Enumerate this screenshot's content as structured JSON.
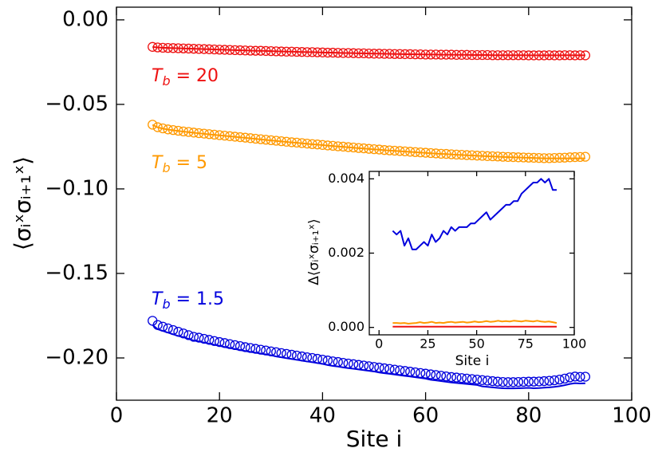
{
  "chart_data": [
    {
      "type": "line",
      "xlabel": "Site i",
      "ylabel": "⟨σᵢˣσᵢ₊₁ˣ⟩",
      "xlim": [
        0,
        100
      ],
      "ylim": [
        -0.225,
        0.0075
      ],
      "xticks": [
        0,
        20,
        40,
        60,
        80,
        100
      ],
      "yticks": [
        {
          "value": 0,
          "label": "0.00"
        },
        {
          "value": -0.05,
          "label": "−0.05"
        },
        {
          "value": -0.1,
          "label": "−0.10"
        },
        {
          "value": -0.15,
          "label": "−0.15"
        },
        {
          "value": -0.2,
          "label": "−0.20"
        }
      ],
      "x": [
        7,
        8,
        9,
        10,
        11,
        12,
        13,
        14,
        15,
        16,
        17,
        18,
        19,
        20,
        21,
        22,
        23,
        24,
        25,
        26,
        27,
        28,
        29,
        30,
        31,
        32,
        33,
        34,
        35,
        36,
        37,
        38,
        39,
        40,
        41,
        42,
        43,
        44,
        45,
        46,
        47,
        48,
        49,
        50,
        51,
        52,
        53,
        54,
        55,
        56,
        57,
        58,
        59,
        60,
        61,
        62,
        63,
        64,
        65,
        66,
        67,
        68,
        69,
        70,
        71,
        72,
        73,
        74,
        75,
        76,
        77,
        78,
        79,
        80,
        81,
        82,
        83,
        84,
        85,
        86,
        87,
        88,
        89,
        90,
        91
      ],
      "series": [
        {
          "style": "line",
          "color": "#ee1111",
          "values": [
            -0.016,
            -0.0163,
            -0.0165,
            -0.0166,
            -0.0167,
            -0.0168,
            -0.0169,
            -0.017,
            -0.0171,
            -0.0172,
            -0.0173,
            -0.0174,
            -0.0175,
            -0.0176,
            -0.0177,
            -0.0178,
            -0.0179,
            -0.018,
            -0.0181,
            -0.0182,
            -0.0183,
            -0.0183,
            -0.0184,
            -0.0185,
            -0.0186,
            -0.0187,
            -0.0188,
            -0.0188,
            -0.0189,
            -0.019,
            -0.0191,
            -0.0191,
            -0.0192,
            -0.0193,
            -0.0194,
            -0.0194,
            -0.0195,
            -0.0196,
            -0.0196,
            -0.0197,
            -0.0198,
            -0.0198,
            -0.0199,
            -0.02,
            -0.02,
            -0.0201,
            -0.0201,
            -0.0202,
            -0.0202,
            -0.0203,
            -0.0203,
            -0.0204,
            -0.0204,
            -0.0205,
            -0.0205,
            -0.0205,
            -0.0206,
            -0.0206,
            -0.0206,
            -0.0207,
            -0.0207,
            -0.0207,
            -0.0208,
            -0.0208,
            -0.0208,
            -0.0208,
            -0.0209,
            -0.0209,
            -0.0209,
            -0.0209,
            -0.0209,
            -0.0209,
            -0.0209,
            -0.021,
            -0.021,
            -0.021,
            -0.021,
            -0.0209,
            -0.021,
            -0.021,
            -0.0209,
            -0.0209,
            -0.021,
            -0.0209,
            -0.021
          ]
        },
        {
          "style": "markers",
          "color": "#ee1111",
          "values": [
            -0.016,
            -0.0163,
            -0.0165,
            -0.0166,
            -0.0167,
            -0.0168,
            -0.0169,
            -0.017,
            -0.0171,
            -0.0172,
            -0.0173,
            -0.0174,
            -0.0175,
            -0.0176,
            -0.0177,
            -0.0178,
            -0.0179,
            -0.018,
            -0.0181,
            -0.0182,
            -0.0183,
            -0.0183,
            -0.0184,
            -0.0185,
            -0.0186,
            -0.0187,
            -0.0188,
            -0.0188,
            -0.0189,
            -0.019,
            -0.0191,
            -0.0191,
            -0.0192,
            -0.0193,
            -0.0194,
            -0.0194,
            -0.0195,
            -0.0196,
            -0.0196,
            -0.0197,
            -0.0198,
            -0.0198,
            -0.0199,
            -0.02,
            -0.02,
            -0.0201,
            -0.0201,
            -0.0202,
            -0.0202,
            -0.0203,
            -0.0203,
            -0.0204,
            -0.0204,
            -0.0205,
            -0.0205,
            -0.0205,
            -0.0206,
            -0.0206,
            -0.0206,
            -0.0207,
            -0.0207,
            -0.0207,
            -0.0208,
            -0.0208,
            -0.0208,
            -0.0208,
            -0.0209,
            -0.0209,
            -0.0209,
            -0.0209,
            -0.0209,
            -0.0209,
            -0.0209,
            -0.021,
            -0.021,
            -0.021,
            -0.021,
            -0.0209,
            -0.021,
            -0.021,
            -0.0209,
            -0.0209,
            -0.021,
            -0.0209,
            -0.021
          ]
        },
        {
          "style": "line",
          "color": "#ff9900",
          "values": [
            -0.0621,
            -0.0636,
            -0.0643,
            -0.0649,
            -0.0653,
            -0.0657,
            -0.0661,
            -0.0664,
            -0.0668,
            -0.0671,
            -0.0674,
            -0.0677,
            -0.068,
            -0.0683,
            -0.0686,
            -0.0689,
            -0.0692,
            -0.0695,
            -0.0698,
            -0.0701,
            -0.0704,
            -0.0707,
            -0.071,
            -0.0713,
            -0.0716,
            -0.0719,
            -0.0722,
            -0.0725,
            -0.0727,
            -0.073,
            -0.0733,
            -0.0736,
            -0.0738,
            -0.0741,
            -0.0744,
            -0.0746,
            -0.0749,
            -0.0751,
            -0.0754,
            -0.0756,
            -0.0759,
            -0.0761,
            -0.0764,
            -0.0766,
            -0.0768,
            -0.0771,
            -0.0773,
            -0.0775,
            -0.0777,
            -0.0779,
            -0.0781,
            -0.0783,
            -0.0785,
            -0.0787,
            -0.0789,
            -0.0791,
            -0.0793,
            -0.0794,
            -0.0796,
            -0.0798,
            -0.0799,
            -0.0801,
            -0.0802,
            -0.0804,
            -0.0805,
            -0.0807,
            -0.0808,
            -0.0809,
            -0.0811,
            -0.0812,
            -0.0813,
            -0.0814,
            -0.0815,
            -0.0816,
            -0.0817,
            -0.0818,
            -0.0819,
            -0.0819,
            -0.0819,
            -0.0819,
            -0.0819,
            -0.0819,
            -0.0819,
            -0.0819,
            -0.0819
          ]
        },
        {
          "style": "markers",
          "color": "#ff9900",
          "values": [
            -0.062,
            -0.0635,
            -0.0642,
            -0.0648,
            -0.0652,
            -0.0656,
            -0.066,
            -0.0663,
            -0.0667,
            -0.067,
            -0.0673,
            -0.0676,
            -0.0679,
            -0.0682,
            -0.0685,
            -0.0688,
            -0.0691,
            -0.0694,
            -0.0697,
            -0.07,
            -0.0703,
            -0.0706,
            -0.0709,
            -0.0712,
            -0.0715,
            -0.0718,
            -0.0721,
            -0.0724,
            -0.0726,
            -0.0729,
            -0.0732,
            -0.0735,
            -0.0737,
            -0.074,
            -0.0743,
            -0.0745,
            -0.0748,
            -0.075,
            -0.0753,
            -0.0755,
            -0.0758,
            -0.076,
            -0.0763,
            -0.0765,
            -0.0767,
            -0.077,
            -0.0772,
            -0.0774,
            -0.0776,
            -0.0778,
            -0.078,
            -0.0782,
            -0.0784,
            -0.0786,
            -0.0788,
            -0.079,
            -0.0792,
            -0.0793,
            -0.0795,
            -0.0797,
            -0.0798,
            -0.08,
            -0.0801,
            -0.0803,
            -0.0804,
            -0.0806,
            -0.0807,
            -0.0808,
            -0.081,
            -0.0811,
            -0.0812,
            -0.0813,
            -0.0814,
            -0.0815,
            -0.0816,
            -0.0817,
            -0.0818,
            -0.0818,
            -0.0817,
            -0.0816,
            -0.0815,
            -0.0813,
            -0.0812,
            -0.0811,
            -0.081
          ]
        },
        {
          "style": "line",
          "color": "#0000dd",
          "values": [
            -0.1805,
            -0.183,
            -0.184,
            -0.185,
            -0.186,
            -0.187,
            -0.1877,
            -0.1887,
            -0.1897,
            -0.1902,
            -0.1909,
            -0.1915,
            -0.1922,
            -0.1928,
            -0.1935,
            -0.1941,
            -0.1947,
            -0.1953,
            -0.1959,
            -0.1964,
            -0.1969,
            -0.1974,
            -0.1979,
            -0.1984,
            -0.1991,
            -0.1996,
            -0.2001,
            -0.2006,
            -0.2011,
            -0.2016,
            -0.2021,
            -0.2025,
            -0.203,
            -0.2035,
            -0.2042,
            -0.2047,
            -0.2051,
            -0.2056,
            -0.206,
            -0.2064,
            -0.2068,
            -0.2072,
            -0.2076,
            -0.208,
            -0.2086,
            -0.209,
            -0.2094,
            -0.2098,
            -0.2102,
            -0.2106,
            -0.211,
            -0.2114,
            -0.2118,
            -0.2122,
            -0.2129,
            -0.2133,
            -0.2137,
            -0.2141,
            -0.2145,
            -0.2148,
            -0.2151,
            -0.2154,
            -0.2157,
            -0.216,
            -0.2168,
            -0.2171,
            -0.2174,
            -0.2177,
            -0.2179,
            -0.218,
            -0.218,
            -0.2179,
            -0.2178,
            -0.2177,
            -0.2179,
            -0.2178,
            -0.2176,
            -0.2174,
            -0.2171,
            -0.2167,
            -0.2161,
            -0.2154,
            -0.2149,
            -0.2151,
            -0.215
          ]
        },
        {
          "style": "markers",
          "color": "#0000dd",
          "values": [
            -0.178,
            -0.1805,
            -0.1815,
            -0.1825,
            -0.1835,
            -0.1845,
            -0.1855,
            -0.1865,
            -0.1875,
            -0.188,
            -0.1887,
            -0.1893,
            -0.19,
            -0.1906,
            -0.1912,
            -0.1918,
            -0.1924,
            -0.193,
            -0.1936,
            -0.1941,
            -0.1946,
            -0.1951,
            -0.1956,
            -0.1961,
            -0.1966,
            -0.1971,
            -0.1976,
            -0.1981,
            -0.1986,
            -0.1991,
            -0.1996,
            -0.2,
            -0.2005,
            -0.201,
            -0.2015,
            -0.202,
            -0.2024,
            -0.2029,
            -0.2033,
            -0.2037,
            -0.2041,
            -0.2045,
            -0.2049,
            -0.2053,
            -0.2057,
            -0.2061,
            -0.2065,
            -0.2069,
            -0.2073,
            -0.2077,
            -0.2081,
            -0.2085,
            -0.2089,
            -0.2093,
            -0.2097,
            -0.2101,
            -0.2105,
            -0.2109,
            -0.2113,
            -0.2116,
            -0.2119,
            -0.2122,
            -0.2125,
            -0.2128,
            -0.2131,
            -0.2134,
            -0.2137,
            -0.214,
            -0.2142,
            -0.2143,
            -0.2143,
            -0.2142,
            -0.2141,
            -0.214,
            -0.214,
            -0.2139,
            -0.2137,
            -0.2135,
            -0.2132,
            -0.2128,
            -0.2122,
            -0.2115,
            -0.211,
            -0.2112,
            -0.2111
          ]
        }
      ],
      "annotations": [
        {
          "text": "T",
          "sub": "b",
          "tail": " = 20",
          "color": "#ee1111"
        },
        {
          "text": "T",
          "sub": "b",
          "tail": " = 5",
          "color": "#ff9900"
        },
        {
          "text": "T",
          "sub": "b",
          "tail": " = 1.5",
          "color": "#0000dd"
        }
      ]
    },
    {
      "type": "line",
      "xlabel": "Site i",
      "ylabel": "Δ⟨σᵢˣσᵢ₊₁ˣ⟩",
      "xlim": [
        -5,
        100
      ],
      "ylim": [
        -0.0002,
        0.0042
      ],
      "xticks": [
        0,
        25,
        50,
        75,
        100
      ],
      "yticks": [
        {
          "value": 0,
          "label": "0.000"
        },
        {
          "value": 0.002,
          "label": "0.002"
        },
        {
          "value": 0.004,
          "label": "0.004"
        }
      ],
      "x": [
        7,
        9,
        11,
        13,
        15,
        17,
        19,
        21,
        23,
        25,
        27,
        29,
        31,
        33,
        35,
        37,
        39,
        41,
        43,
        45,
        47,
        49,
        51,
        53,
        55,
        57,
        59,
        61,
        63,
        65,
        67,
        69,
        71,
        73,
        75,
        77,
        79,
        81,
        83,
        85,
        87,
        89,
        91
      ],
      "series": [
        {
          "style": "line",
          "color": "#ee1111",
          "values": [
            2e-05,
            2e-05,
            2e-05,
            2e-05,
            2e-05,
            2e-05,
            2e-05,
            2e-05,
            2e-05,
            2e-05,
            2e-05,
            2e-05,
            2e-05,
            2e-05,
            2e-05,
            2e-05,
            2e-05,
            2e-05,
            2e-05,
            2e-05,
            2e-05,
            2e-05,
            2e-05,
            2e-05,
            2e-05,
            2e-05,
            2e-05,
            2e-05,
            2e-05,
            2e-05,
            2e-05,
            2e-05,
            2e-05,
            2e-05,
            2e-05,
            2e-05,
            2e-05,
            2e-05,
            2e-05,
            2e-05,
            2e-05,
            2e-05,
            2e-05
          ]
        },
        {
          "style": "line",
          "color": "#ff9900",
          "values": [
            0.00012,
            0.00012,
            0.00011,
            0.00012,
            0.0001,
            0.00011,
            0.00012,
            0.00014,
            0.00012,
            0.00013,
            0.00015,
            0.00012,
            0.00013,
            0.00012,
            0.00014,
            0.00015,
            0.00013,
            0.00014,
            0.00015,
            0.00013,
            0.00014,
            0.00016,
            0.00014,
            0.00015,
            0.00017,
            0.00015,
            0.00016,
            0.00018,
            0.00016,
            0.00017,
            0.00016,
            0.00018,
            0.00017,
            0.00016,
            0.00018,
            0.00017,
            0.00016,
            0.00018,
            0.00016,
            0.00015,
            0.00016,
            0.00014,
            0.00012
          ]
        },
        {
          "style": "line",
          "color": "#0000dd",
          "values": [
            0.0026,
            0.0025,
            0.0026,
            0.0022,
            0.0024,
            0.0021,
            0.0021,
            0.0022,
            0.0023,
            0.0022,
            0.0025,
            0.0023,
            0.0024,
            0.0026,
            0.0025,
            0.0027,
            0.0026,
            0.0027,
            0.0027,
            0.0027,
            0.0028,
            0.0028,
            0.0029,
            0.003,
            0.0031,
            0.0029,
            0.003,
            0.0031,
            0.0032,
            0.0033,
            0.0033,
            0.0034,
            0.0034,
            0.0036,
            0.0037,
            0.0038,
            0.0039,
            0.0039,
            0.004,
            0.0039,
            0.004,
            0.0037,
            0.0037
          ]
        }
      ]
    }
  ]
}
